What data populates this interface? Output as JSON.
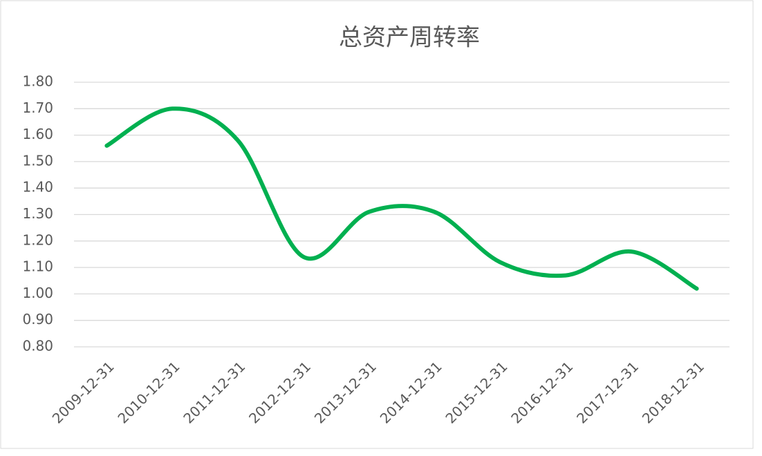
{
  "chart_data": {
    "type": "line",
    "title": "总资产周转率",
    "categories": [
      "2009-12-31",
      "2010-12-31",
      "2011-12-31",
      "2012-12-31",
      "2013-12-31",
      "2014-12-31",
      "2015-12-31",
      "2016-12-31",
      "2017-12-31",
      "2018-12-31"
    ],
    "series": [
      {
        "name": "总资产周转率",
        "color": "#00b050",
        "values": [
          1.56,
          1.7,
          1.58,
          1.14,
          1.31,
          1.31,
          1.12,
          1.07,
          1.16,
          1.02
        ]
      }
    ],
    "smooth": true,
    "ylim": [
      0.8,
      1.8
    ],
    "yticks": [
      {
        "value": 0.8,
        "label": "0.80"
      },
      {
        "value": 0.9,
        "label": "0.90"
      },
      {
        "value": 1.0,
        "label": "1.00"
      },
      {
        "value": 1.1,
        "label": "1.10"
      },
      {
        "value": 1.2,
        "label": "1.20"
      },
      {
        "value": 1.3,
        "label": "1.30"
      },
      {
        "value": 1.4,
        "label": "1.40"
      },
      {
        "value": 1.5,
        "label": "1.50"
      },
      {
        "value": 1.6,
        "label": "1.60"
      },
      {
        "value": 1.7,
        "label": "1.70"
      },
      {
        "value": 1.8,
        "label": "1.80"
      }
    ],
    "grid": true
  }
}
